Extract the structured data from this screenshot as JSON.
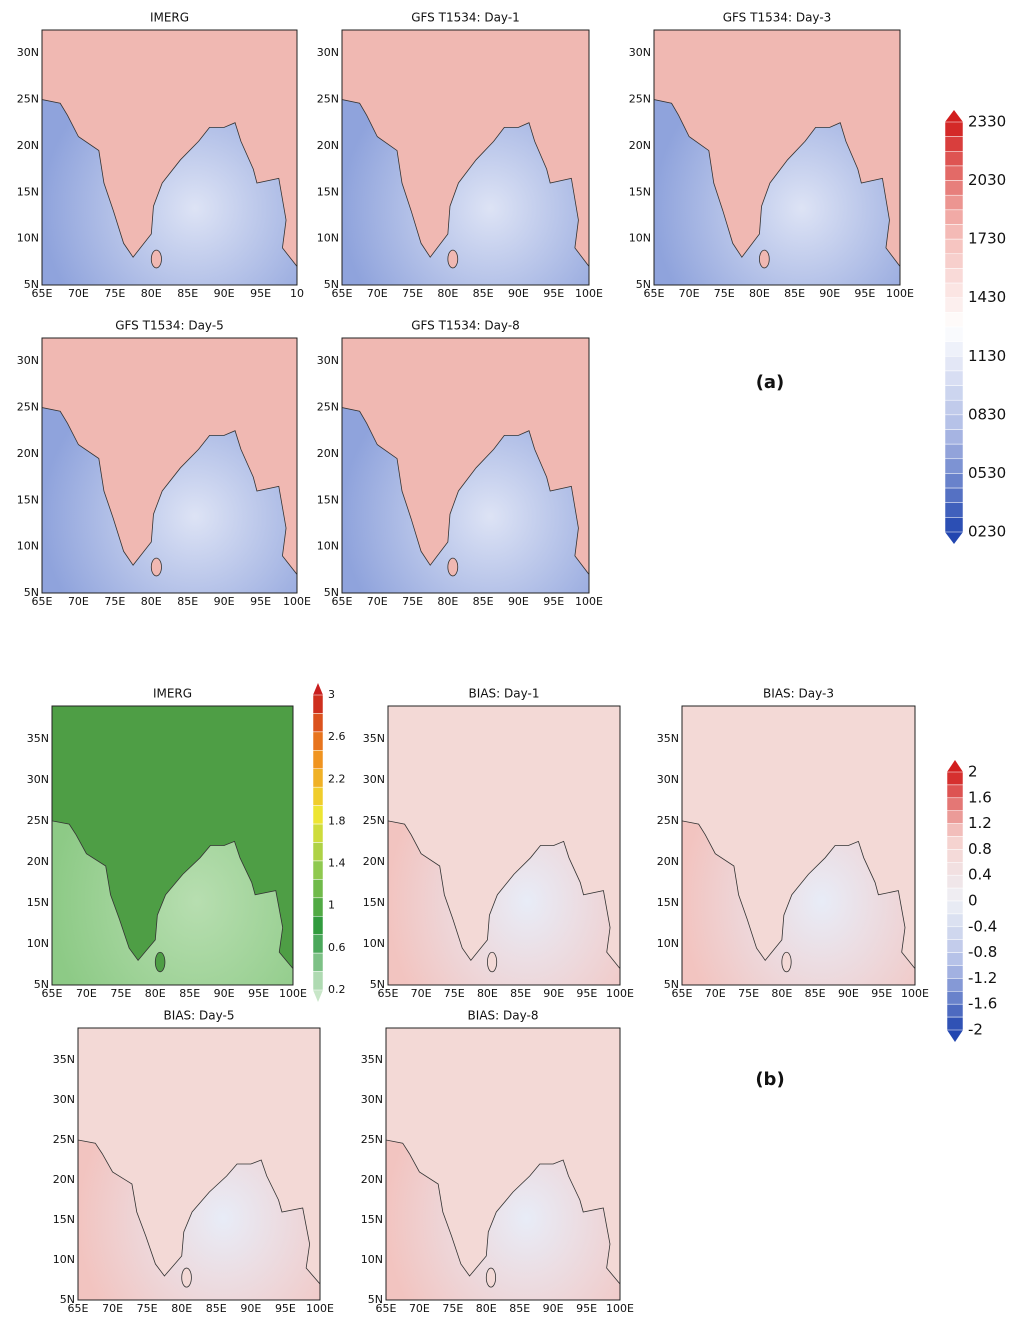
{
  "panel_a": {
    "label": "(a)",
    "maps": [
      {
        "title": "IMERG",
        "lat_labels": [
          "30N",
          "25N",
          "20N",
          "15N",
          "10N",
          "5N"
        ],
        "lon_labels": [
          "65E",
          "70E",
          "75E",
          "80E",
          "85E",
          "90E",
          "95E",
          "10"
        ]
      },
      {
        "title": "GFS T1534: Day-1",
        "lat_labels": [
          "30N",
          "25N",
          "20N",
          "15N",
          "10N",
          "5N"
        ],
        "lon_labels": [
          "65E",
          "70E",
          "75E",
          "80E",
          "85E",
          "90E",
          "95E",
          "100E"
        ]
      },
      {
        "title": "GFS T1534: Day-3",
        "lat_labels": [
          "30N",
          "25N",
          "20N",
          "15N",
          "10N",
          "5N"
        ],
        "lon_labels": [
          "65E",
          "70E",
          "75E",
          "80E",
          "85E",
          "90E",
          "95E",
          "100E"
        ]
      },
      {
        "title": "GFS T1534: Day-5",
        "lat_labels": [
          "30N",
          "25N",
          "20N",
          "15N",
          "10N",
          "5N"
        ],
        "lon_labels": [
          "65E",
          "70E",
          "75E",
          "80E",
          "85E",
          "90E",
          "95E",
          "100E"
        ]
      },
      {
        "title": "GFS T1534: Day-8",
        "lat_labels": [
          "30N",
          "25N",
          "20N",
          "15N",
          "10N",
          "5N"
        ],
        "lon_labels": [
          "65E",
          "70E",
          "75E",
          "80E",
          "85E",
          "90E",
          "95E",
          "100E"
        ]
      }
    ],
    "colorbar": [
      "2330",
      "2030",
      "1730",
      "1430",
      "1130",
      "0830",
      "0530",
      "0230"
    ]
  },
  "panel_b": {
    "label": "(b)",
    "maps": [
      {
        "title": "IMERG",
        "lat_labels": [
          "35N",
          "30N",
          "25N",
          "20N",
          "15N",
          "10N",
          "5N"
        ],
        "lon_labels": [
          "65E",
          "70E",
          "75E",
          "80E",
          "85E",
          "90E",
          "95E",
          "100E"
        ]
      },
      {
        "title": "BIAS: Day-1",
        "lat_labels": [
          "35N",
          "30N",
          "25N",
          "20N",
          "15N",
          "10N",
          "5N"
        ],
        "lon_labels": [
          "65E",
          "70E",
          "75E",
          "80E",
          "85E",
          "90E",
          "95E",
          "100E"
        ]
      },
      {
        "title": "BIAS: Day-3",
        "lat_labels": [
          "35N",
          "30N",
          "25N",
          "20N",
          "15N",
          "10N",
          "5N"
        ],
        "lon_labels": [
          "65E",
          "70E",
          "75E",
          "80E",
          "85E",
          "90E",
          "95E",
          "100E"
        ]
      },
      {
        "title": "BIAS: Day-5",
        "lat_labels": [
          "35N",
          "30N",
          "25N",
          "20N",
          "15N",
          "10N",
          "5N"
        ],
        "lon_labels": [
          "65E",
          "70E",
          "75E",
          "80E",
          "85E",
          "90E",
          "95E",
          "100E"
        ]
      },
      {
        "title": "BIAS: Day-8",
        "lat_labels": [
          "35N",
          "30N",
          "25N",
          "20N",
          "15N",
          "10N",
          "5N"
        ],
        "lon_labels": [
          "65E",
          "70E",
          "75E",
          "80E",
          "85E",
          "90E",
          "95E",
          "100E"
        ]
      }
    ],
    "imerg_colorbar": [
      "3",
      "2.6",
      "2.2",
      "1.8",
      "1.4",
      "1",
      "0.6",
      "0.2"
    ],
    "colorbar": [
      "2",
      "1.6",
      "1.2",
      "0.8",
      "0.4",
      "0",
      "-0.4",
      "-0.8",
      "-1.2",
      "-1.6",
      "-2"
    ]
  }
}
